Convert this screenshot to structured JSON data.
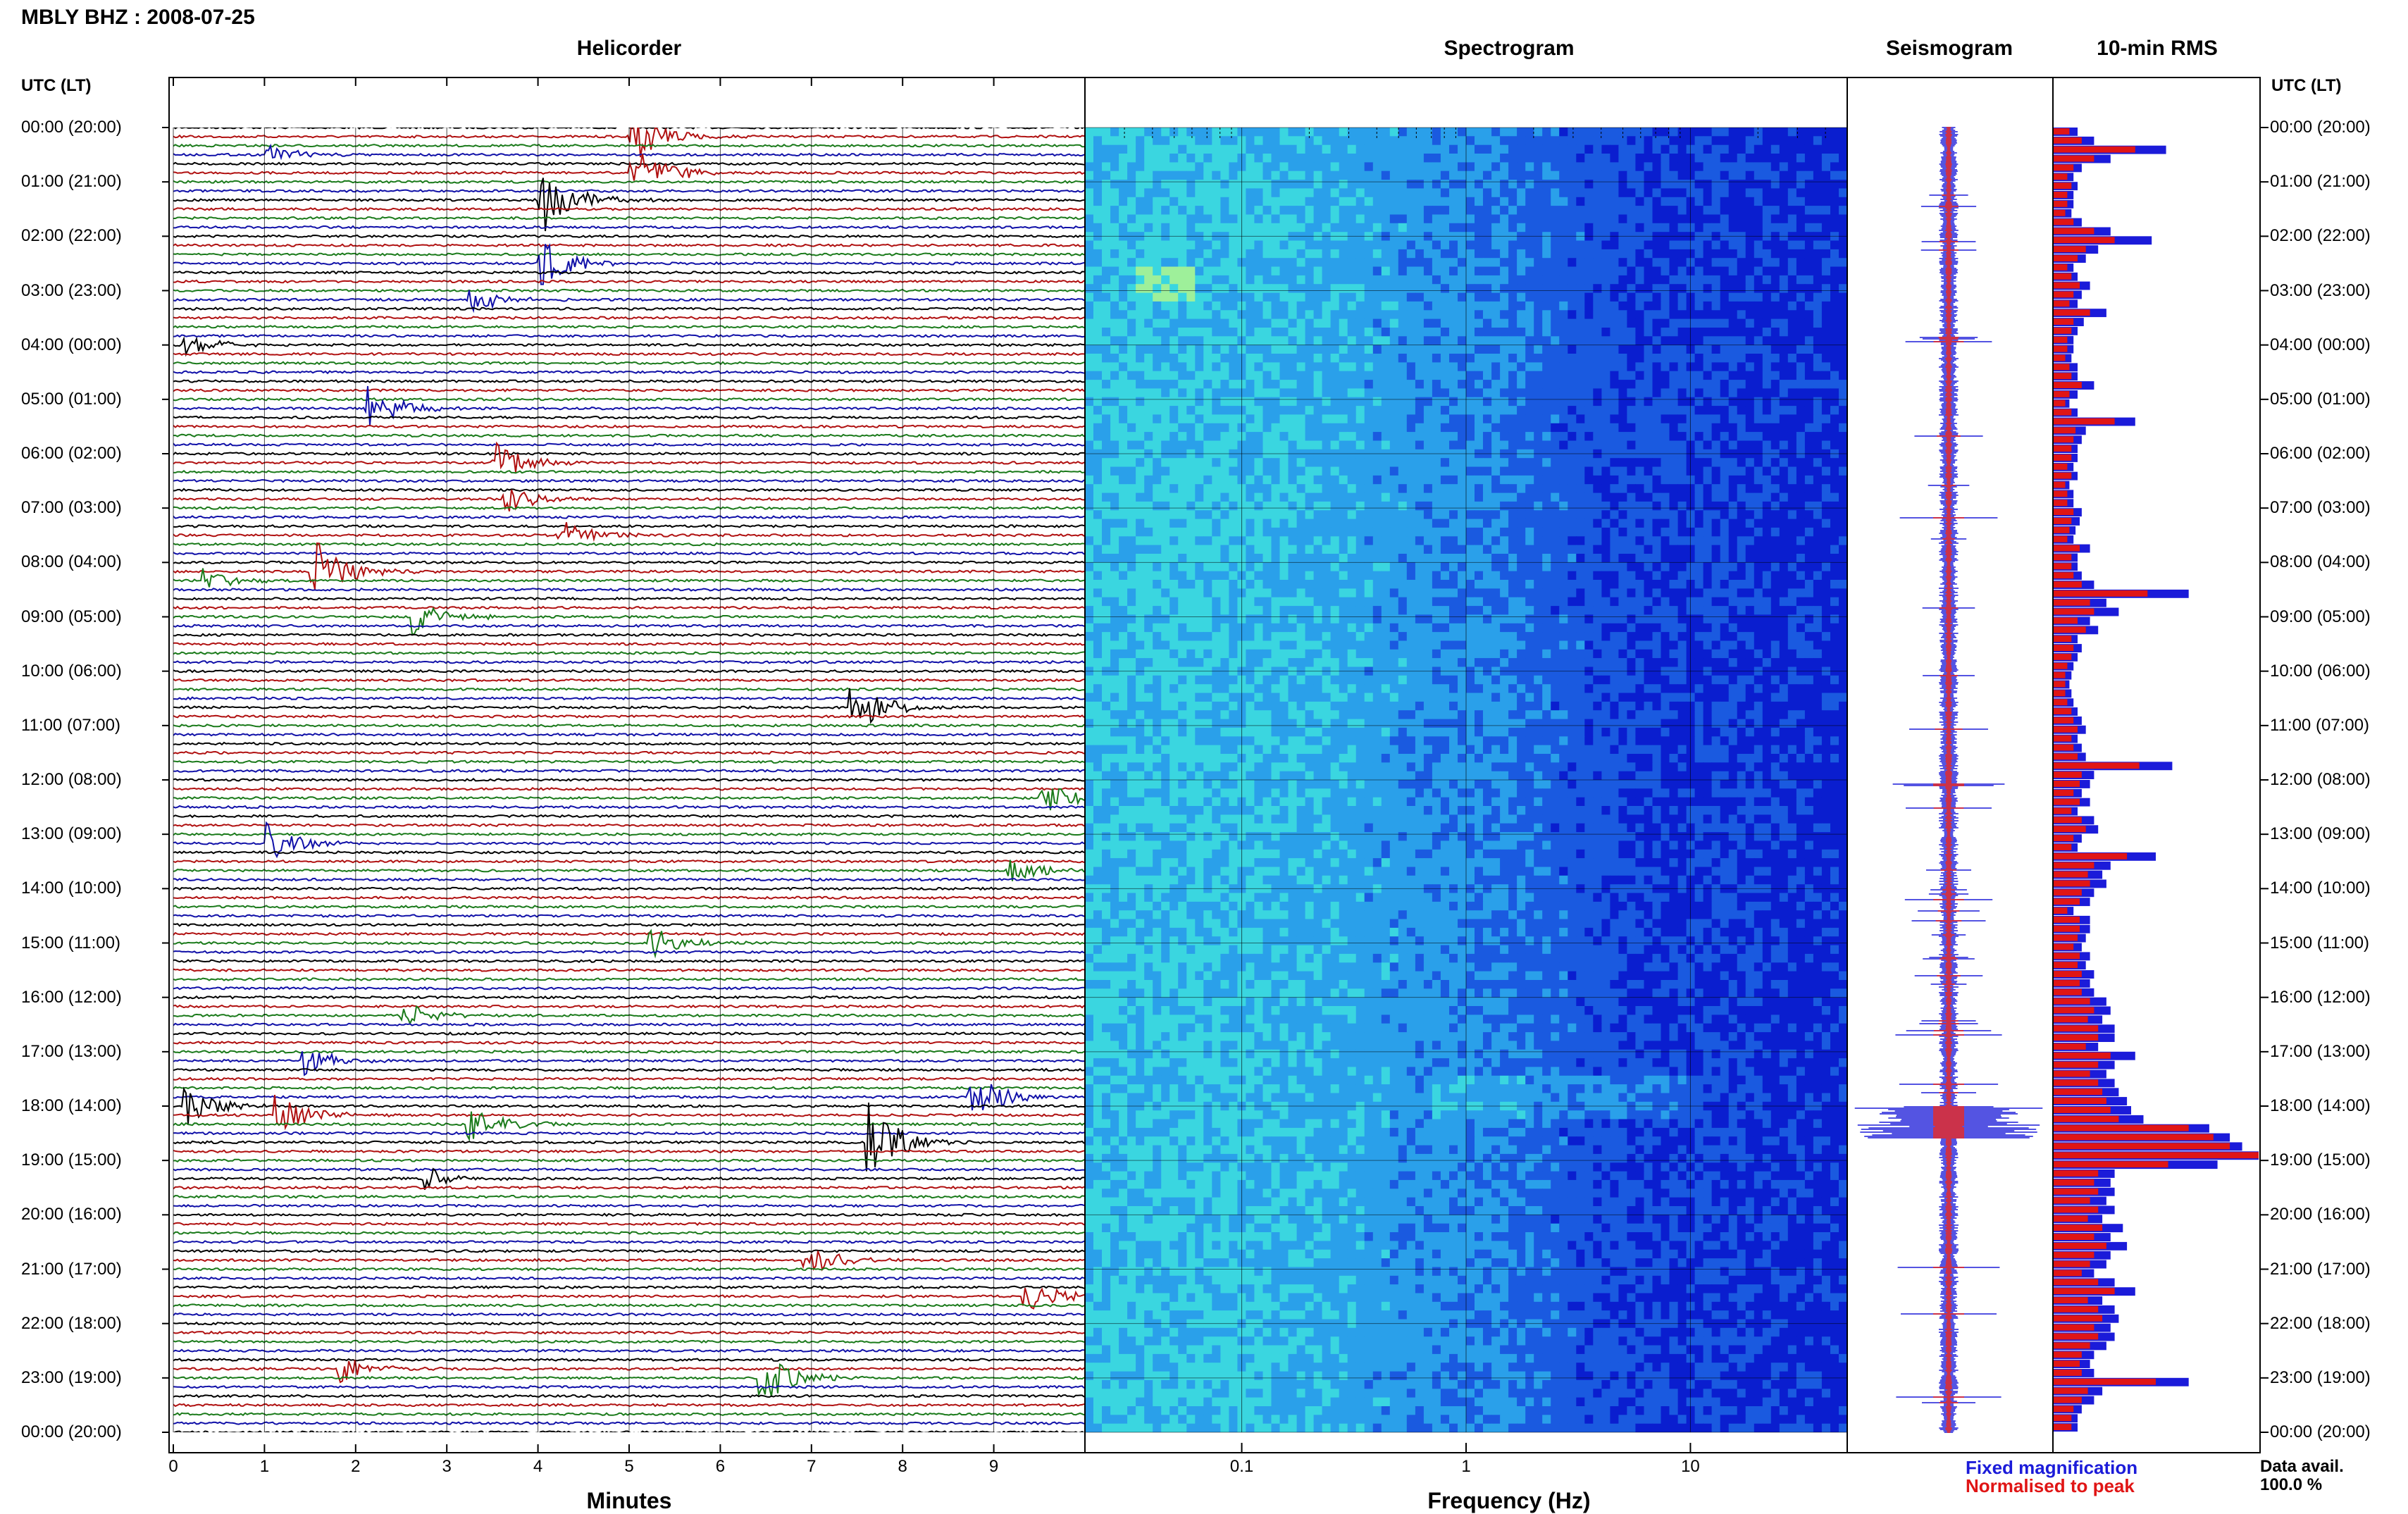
{
  "header": {
    "station": "MBLY BHZ : 2008-07-25",
    "panels": [
      "Helicorder",
      "Spectrogram",
      "Seismogram",
      "10-min RMS"
    ],
    "time_axis_title": "UTC (LT)"
  },
  "time_labels": [
    "00:00 (20:00)",
    "01:00 (21:00)",
    "02:00 (22:00)",
    "03:00 (23:00)",
    "04:00 (00:00)",
    "05:00 (01:00)",
    "06:00 (02:00)",
    "07:00 (03:00)",
    "08:00 (04:00)",
    "09:00 (05:00)",
    "10:00 (06:00)",
    "11:00 (07:00)",
    "12:00 (08:00)",
    "13:00 (09:00)",
    "14:00 (10:00)",
    "15:00 (11:00)",
    "16:00 (12:00)",
    "17:00 (13:00)",
    "18:00 (14:00)",
    "19:00 (15:00)",
    "20:00 (16:00)",
    "21:00 (17:00)",
    "22:00 (18:00)",
    "23:00 (19:00)",
    "00:00 (20:00)"
  ],
  "legend": {
    "fixed": "Fixed magnification",
    "fixed_color": "#1b1bd9",
    "peak": "Normalised to peak",
    "peak_color": "#e01515"
  },
  "availability": {
    "label": "Data avail.",
    "value": "100.0 %"
  },
  "chart_data": [
    {
      "type": "line",
      "title": "Helicorder",
      "xlabel": "Minutes",
      "x_ticks": [
        "0",
        "1",
        "2",
        "3",
        "4",
        "5",
        "6",
        "7",
        "8",
        "9"
      ],
      "xlim": [
        0,
        10
      ],
      "trace_colors": [
        "#000000",
        "#b01010",
        "#1a7a1a",
        "#1010a8"
      ],
      "traces_per_hour": 6,
      "events": [
        {
          "row": 1,
          "minute": 5.0,
          "amp": 1.6
        },
        {
          "row": 3,
          "minute": 1.0,
          "amp": 0.6
        },
        {
          "row": 5,
          "minute": 5.0,
          "amp": 1.8
        },
        {
          "row": 8,
          "minute": 4.0,
          "amp": 2.2
        },
        {
          "row": 15,
          "minute": 4.0,
          "amp": 1.5
        },
        {
          "row": 19,
          "minute": 3.2,
          "amp": 0.9
        },
        {
          "row": 24,
          "minute": 0.1,
          "amp": 0.8
        },
        {
          "row": 31,
          "minute": 2.1,
          "amp": 1.5
        },
        {
          "row": 37,
          "minute": 3.5,
          "amp": 1.2
        },
        {
          "row": 41,
          "minute": 3.6,
          "amp": 0.9
        },
        {
          "row": 45,
          "minute": 4.2,
          "amp": 1.0
        },
        {
          "row": 49,
          "minute": 1.5,
          "amp": 2.2
        },
        {
          "row": 50,
          "minute": 0.3,
          "amp": 0.7
        },
        {
          "row": 54,
          "minute": 2.6,
          "amp": 1.2
        },
        {
          "row": 64,
          "minute": 7.4,
          "amp": 1.8
        },
        {
          "row": 74,
          "minute": 9.5,
          "amp": 1.0
        },
        {
          "row": 79,
          "minute": 1.0,
          "amp": 1.3
        },
        {
          "row": 82,
          "minute": 9.1,
          "amp": 0.8
        },
        {
          "row": 90,
          "minute": 5.2,
          "amp": 1.0
        },
        {
          "row": 98,
          "minute": 2.5,
          "amp": 0.8
        },
        {
          "row": 103,
          "minute": 1.4,
          "amp": 0.9
        },
        {
          "row": 107,
          "minute": 8.7,
          "amp": 1.7
        },
        {
          "row": 108,
          "minute": 0.1,
          "amp": 1.2
        },
        {
          "row": 109,
          "minute": 1.1,
          "amp": 1.2
        },
        {
          "row": 110,
          "minute": 3.2,
          "amp": 1.3
        },
        {
          "row": 112,
          "minute": 7.6,
          "amp": 2.5
        },
        {
          "row": 116,
          "minute": 2.7,
          "amp": 0.8
        },
        {
          "row": 125,
          "minute": 6.9,
          "amp": 1.1
        },
        {
          "row": 129,
          "minute": 9.3,
          "amp": 1.2
        },
        {
          "row": 137,
          "minute": 1.8,
          "amp": 1.0
        },
        {
          "row": 138,
          "minute": 6.4,
          "amp": 1.8
        }
      ]
    },
    {
      "type": "heatmap",
      "title": "Spectrogram",
      "xlabel": "Frequency (Hz)",
      "x_scale": "log",
      "xlim": [
        0.02,
        50
      ],
      "x_ticks": [
        0.1,
        1,
        10
      ],
      "x_tick_labels": [
        "0.1",
        "1",
        "10"
      ],
      "colormap": [
        "#0a1ecf",
        "#1a5ae0",
        "#2aa0ea",
        "#3ad6e0",
        "#9ef09a"
      ]
    },
    {
      "type": "line",
      "title": "Seismogram",
      "series": [
        {
          "name": "Fixed magnification",
          "color": "#1b1bd9"
        },
        {
          "name": "Normalised to peak",
          "color": "#e01515"
        }
      ]
    },
    {
      "type": "bar",
      "title": "10-min RMS",
      "series": [
        {
          "name": "Fixed magnification",
          "color": "#1b1bd9",
          "values": [
            0.12,
            0.2,
            0.55,
            0.28,
            0.14,
            0.1,
            0.12,
            0.1,
            0.1,
            0.09,
            0.14,
            0.28,
            0.48,
            0.22,
            0.16,
            0.1,
            0.12,
            0.18,
            0.14,
            0.12,
            0.26,
            0.15,
            0.12,
            0.1,
            0.1,
            0.09,
            0.12,
            0.12,
            0.2,
            0.12,
            0.08,
            0.12,
            0.4,
            0.16,
            0.14,
            0.12,
            0.12,
            0.1,
            0.12,
            0.08,
            0.1,
            0.1,
            0.14,
            0.13,
            0.11,
            0.1,
            0.18,
            0.12,
            0.12,
            0.14,
            0.2,
            0.66,
            0.26,
            0.32,
            0.18,
            0.22,
            0.12,
            0.14,
            0.12,
            0.1,
            0.09,
            0.08,
            0.09,
            0.1,
            0.12,
            0.14,
            0.16,
            0.12,
            0.14,
            0.16,
            0.58,
            0.2,
            0.18,
            0.14,
            0.18,
            0.12,
            0.2,
            0.22,
            0.14,
            0.12,
            0.5,
            0.28,
            0.24,
            0.26,
            0.2,
            0.18,
            0.1,
            0.18,
            0.18,
            0.16,
            0.14,
            0.18,
            0.16,
            0.2,
            0.18,
            0.2,
            0.26,
            0.28,
            0.24,
            0.3,
            0.3,
            0.22,
            0.4,
            0.3,
            0.26,
            0.3,
            0.32,
            0.36,
            0.38,
            0.44,
            0.76,
            0.86,
            0.92,
            1.0,
            0.8,
            0.3,
            0.28,
            0.3,
            0.26,
            0.3,
            0.24,
            0.34,
            0.28,
            0.36,
            0.28,
            0.26,
            0.2,
            0.3,
            0.4,
            0.24,
            0.3,
            0.32,
            0.28,
            0.3,
            0.26,
            0.2,
            0.18,
            0.2,
            0.66,
            0.24,
            0.2,
            0.14,
            0.12,
            0.12
          ]
        },
        {
          "name": "Normalised to peak",
          "color": "#e01515",
          "values": [
            0.08,
            0.14,
            0.4,
            0.2,
            0.1,
            0.07,
            0.09,
            0.07,
            0.07,
            0.06,
            0.1,
            0.2,
            0.3,
            0.16,
            0.12,
            0.07,
            0.09,
            0.13,
            0.1,
            0.08,
            0.18,
            0.1,
            0.09,
            0.07,
            0.07,
            0.06,
            0.08,
            0.09,
            0.14,
            0.08,
            0.06,
            0.09,
            0.3,
            0.11,
            0.1,
            0.09,
            0.09,
            0.07,
            0.09,
            0.06,
            0.07,
            0.07,
            0.1,
            0.09,
            0.08,
            0.07,
            0.13,
            0.09,
            0.09,
            0.1,
            0.14,
            0.46,
            0.18,
            0.2,
            0.12,
            0.16,
            0.09,
            0.1,
            0.09,
            0.07,
            0.06,
            0.06,
            0.06,
            0.07,
            0.09,
            0.1,
            0.12,
            0.09,
            0.1,
            0.12,
            0.42,
            0.14,
            0.13,
            0.1,
            0.13,
            0.09,
            0.14,
            0.16,
            0.1,
            0.09,
            0.36,
            0.2,
            0.17,
            0.18,
            0.14,
            0.13,
            0.07,
            0.13,
            0.13,
            0.12,
            0.1,
            0.13,
            0.12,
            0.14,
            0.13,
            0.14,
            0.18,
            0.2,
            0.17,
            0.22,
            0.22,
            0.16,
            0.28,
            0.22,
            0.18,
            0.22,
            0.24,
            0.26,
            0.28,
            0.32,
            0.66,
            0.78,
            0.86,
            1.0,
            0.56,
            0.22,
            0.2,
            0.22,
            0.18,
            0.22,
            0.17,
            0.24,
            0.2,
            0.26,
            0.2,
            0.18,
            0.14,
            0.22,
            0.3,
            0.17,
            0.22,
            0.24,
            0.2,
            0.22,
            0.18,
            0.14,
            0.13,
            0.14,
            0.5,
            0.17,
            0.14,
            0.1,
            0.09,
            0.09
          ]
        }
      ]
    }
  ]
}
